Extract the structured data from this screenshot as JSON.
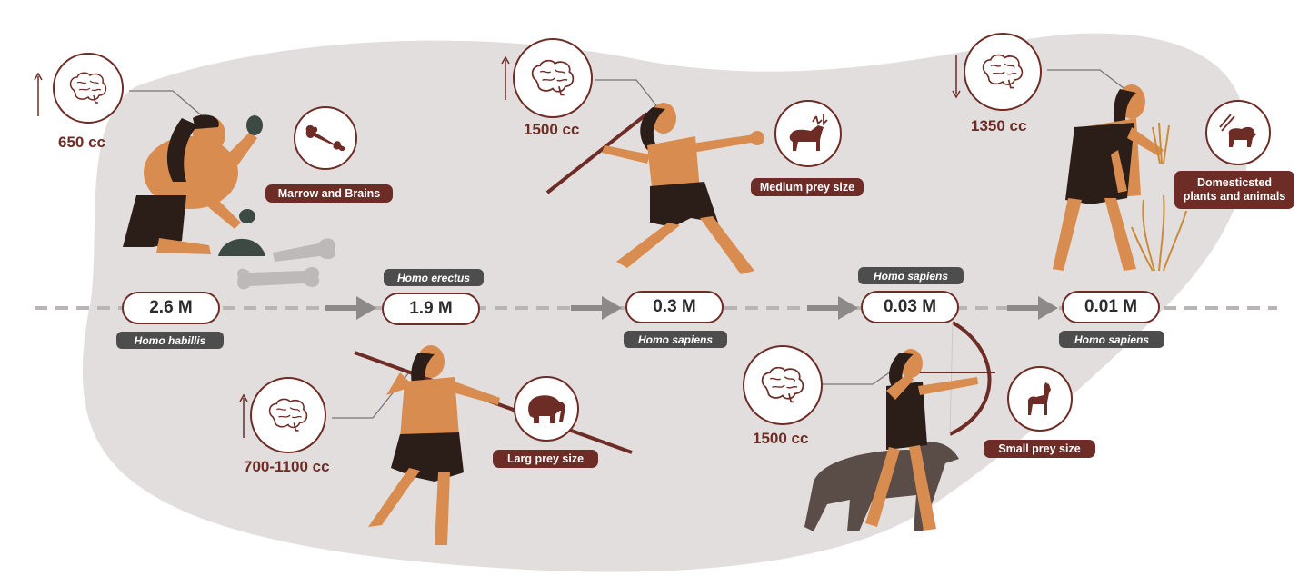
{
  "timeline": [
    {
      "time": "2.6 M",
      "species": "Homo habillis"
    },
    {
      "time": "1.9 M",
      "species": "Homo erectus"
    },
    {
      "time": "0.3 M",
      "species": "Homo sapiens"
    },
    {
      "time": "0.03 M",
      "species": "Homo sapiens"
    },
    {
      "time": "0.01 M",
      "species": "Homo sapiens"
    }
  ],
  "brain_sizes": [
    {
      "label": "650 cc",
      "trend": "up"
    },
    {
      "label": "700-1100 cc",
      "trend": "up"
    },
    {
      "label": "1500 cc",
      "trend": "up"
    },
    {
      "label": "1500 cc",
      "trend": "none"
    },
    {
      "label": "1350 cc",
      "trend": "down"
    }
  ],
  "diets": [
    {
      "label": "Marrow and Brains",
      "icon": "bone-icon"
    },
    {
      "label": "Larg prey size",
      "icon": "elephant-icon"
    },
    {
      "label": "Medium prey size",
      "icon": "reindeer-icon"
    },
    {
      "label": "Small prey size",
      "icon": "deer-icon"
    },
    {
      "label": "Domesticsted",
      "label2": "plants and animals",
      "icon": "sheep-icon"
    }
  ],
  "colors": {
    "accent": "#6d2c26",
    "skin": "#d98c4f",
    "hair": "#2b1d17",
    "blob": "#e2dedd",
    "tag_gray": "#4d4d4d"
  }
}
